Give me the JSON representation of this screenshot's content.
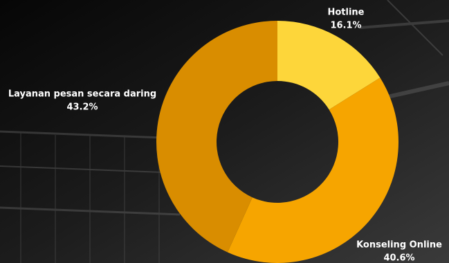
{
  "chart_data": {
    "type": "donut",
    "categories": [
      "Hotline",
      "Konseling Online",
      "Layanan pesan secara daring"
    ],
    "values": [
      16.1,
      40.6,
      43.2
    ],
    "value_labels": [
      "16.1%",
      "40.6%",
      "43.2%"
    ],
    "colors": [
      "#fdd63a",
      "#f6a500",
      "#d98d00"
    ]
  }
}
